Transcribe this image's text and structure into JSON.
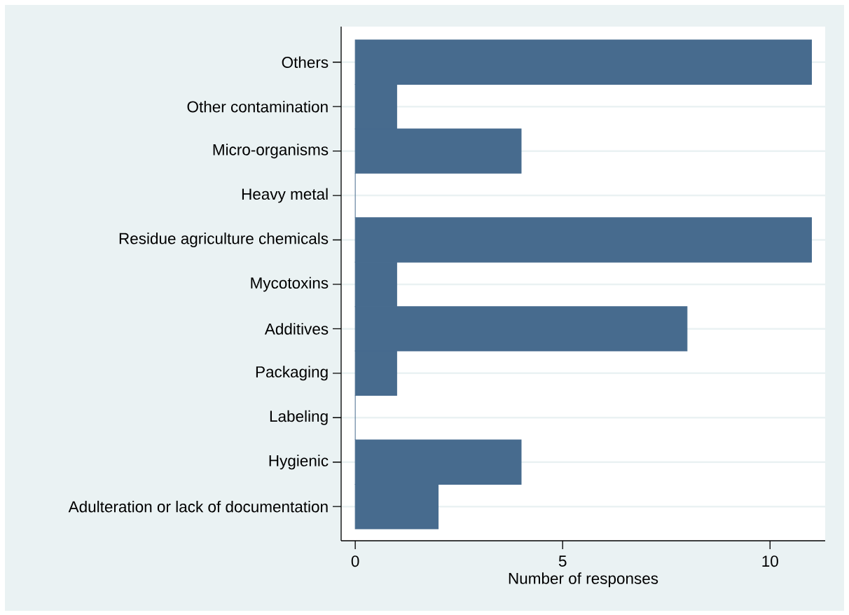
{
  "chart_data": {
    "type": "bar",
    "orientation": "horizontal",
    "categories": [
      "Others",
      "Other contamination",
      "Micro-organisms",
      "Heavy metal",
      "Residue agriculture chemicals",
      "Mycotoxins",
      "Additives",
      "Packaging",
      "Labeling",
      "Hygienic",
      "Adulteration or lack of documentation"
    ],
    "values": [
      11,
      1,
      4,
      0,
      11,
      1,
      8,
      1,
      0,
      4,
      2
    ],
    "color": "#476b8e",
    "xlabel": "Number of responses",
    "xlim": [
      -0.34,
      11.33
    ],
    "xticks": [
      0,
      5,
      10
    ],
    "grid": "y"
  }
}
